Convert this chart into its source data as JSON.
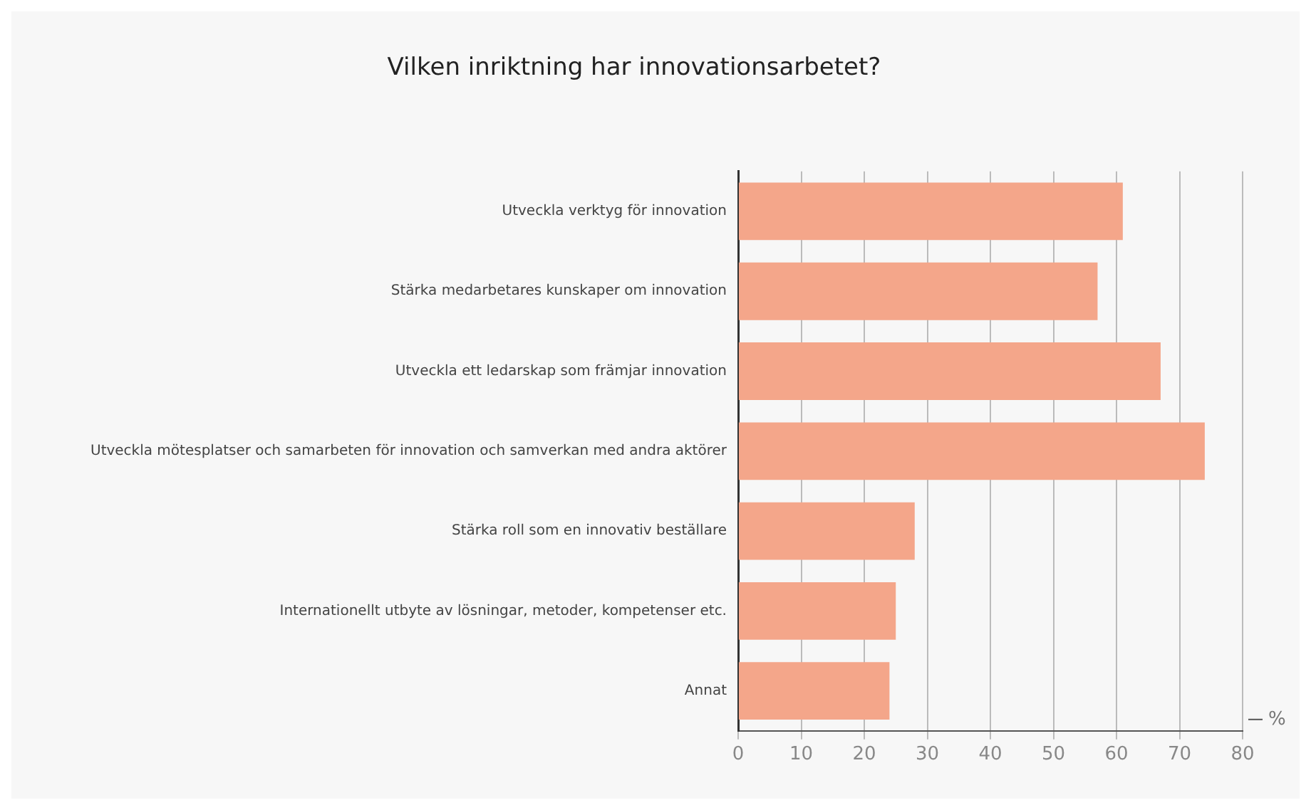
{
  "chart_data": {
    "type": "bar",
    "orientation": "horizontal",
    "title": "Vilken inriktning har innovationsarbetet?",
    "xlabel": "%",
    "categories": [
      "Utveckla verktyg för innovation",
      "Stärka medarbetares kunskaper om innovation",
      "Utveckla ett ledarskap som främjar innovation",
      "Utveckla mötesplatser och samarbeten för innovation och samverkan med andra aktörer",
      "Stärka roll som en innovativ beställare",
      "Internationellt utbyte av lösningar, metoder, kompetenser etc.",
      "Annat"
    ],
    "values": [
      61,
      57,
      67,
      74,
      28,
      25,
      24
    ],
    "color": "#f4a68a",
    "xlim": [
      0,
      80
    ],
    "xticks": [
      0,
      10,
      20,
      30,
      40,
      50,
      60,
      70,
      80
    ],
    "grid": "x",
    "legend": false
  }
}
